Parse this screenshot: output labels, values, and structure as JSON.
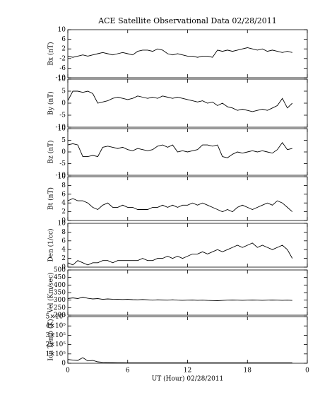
{
  "chart_data": [
    {
      "type": "line",
      "title": "ACE Satellite Observational Data   02/28/2011",
      "ylabel": "Bx (nT)",
      "color": "#000000",
      "x": [
        0,
        0.5,
        1,
        1.5,
        2,
        2.5,
        3,
        3.5,
        4,
        4.5,
        5,
        5.5,
        6,
        6.5,
        7,
        7.5,
        8,
        8.5,
        9,
        9.5,
        10,
        10.5,
        11,
        11.5,
        12,
        12.5,
        13,
        13.5,
        14,
        14.5,
        15,
        15.5,
        16,
        16.5,
        17,
        17.5,
        18,
        18.5,
        19,
        19.5,
        20,
        20.5,
        21,
        21.5,
        22,
        22.5
      ],
      "values": [
        -1,
        -1.5,
        -1,
        -0.5,
        -1,
        -0.5,
        0,
        0.5,
        0,
        -0.5,
        0,
        0.5,
        0,
        -0.5,
        1,
        1.5,
        1.5,
        1,
        2,
        1.5,
        0,
        -0.5,
        0,
        -0.5,
        -1,
        -1,
        -1.5,
        -1,
        -1,
        -1.5,
        1.5,
        1,
        1.5,
        1,
        1.5,
        2,
        2.5,
        2,
        1.5,
        2,
        1,
        1.5,
        1,
        0.5,
        1,
        0.5
      ],
      "xlim": [
        0,
        24
      ],
      "xticks": [
        0,
        6,
        12,
        18,
        {
          "value": 24,
          "label": "0"
        }
      ],
      "ylim": [
        -10,
        10
      ],
      "yticks": [
        -10,
        -6,
        -2,
        2,
        6,
        10
      ]
    },
    {
      "type": "line",
      "ylabel": "By (nT)",
      "color": "#000000",
      "x": [
        0,
        0.5,
        1,
        1.5,
        2,
        2.5,
        3,
        3.5,
        4,
        4.5,
        5,
        5.5,
        6,
        6.5,
        7,
        7.5,
        8,
        8.5,
        9,
        9.5,
        10,
        10.5,
        11,
        11.5,
        12,
        12.5,
        13,
        13.5,
        14,
        14.5,
        15,
        15.5,
        16,
        16.5,
        17,
        17.5,
        18,
        18.5,
        19,
        19.5,
        20,
        20.5,
        21,
        21.5,
        22,
        22.5
      ],
      "values": [
        1,
        5,
        5,
        4.5,
        5,
        4,
        0,
        0.5,
        1,
        2,
        2.5,
        2,
        1.5,
        2,
        3,
        2.5,
        2,
        2.5,
        2,
        3,
        2.5,
        2,
        2.5,
        2,
        1.5,
        1,
        0.5,
        1,
        0,
        0.5,
        -1,
        0,
        -1.5,
        -2,
        -3,
        -2.5,
        -3,
        -3.5,
        -3,
        -2.5,
        -3,
        -2,
        -1,
        2,
        -2,
        0
      ],
      "xlim": [
        0,
        24
      ],
      "xticks": [
        0,
        6,
        12,
        18,
        {
          "value": 24,
          "label": "0"
        }
      ],
      "ylim": [
        -10,
        10
      ],
      "yticks": [
        -10,
        -5,
        0,
        5,
        10
      ]
    },
    {
      "type": "line",
      "ylabel": "Bz (nT)",
      "color": "#000000",
      "x": [
        0,
        0.5,
        1,
        1.5,
        2,
        2.5,
        3,
        3.5,
        4,
        4.5,
        5,
        5.5,
        6,
        6.5,
        7,
        7.5,
        8,
        8.5,
        9,
        9.5,
        10,
        10.5,
        11,
        11.5,
        12,
        12.5,
        13,
        13.5,
        14,
        14.5,
        15,
        15.5,
        16,
        16.5,
        17,
        17.5,
        18,
        18.5,
        19,
        19.5,
        20,
        20.5,
        21,
        21.5,
        22,
        22.5
      ],
      "values": [
        3,
        3.5,
        3,
        -2,
        -2,
        -1.5,
        -2,
        2,
        2.5,
        2,
        1.5,
        2,
        1,
        0.5,
        1.5,
        1,
        0.5,
        1,
        2.5,
        3,
        2,
        3,
        0,
        0.5,
        0,
        0.5,
        1,
        3,
        3,
        2.5,
        3,
        -2,
        -2.5,
        -1,
        0,
        -0.5,
        0,
        0.5,
        0,
        0.5,
        0,
        -0.5,
        1,
        4,
        1,
        1.5
      ],
      "xlim": [
        0,
        24
      ],
      "xticks": [
        0,
        6,
        12,
        18,
        {
          "value": 24,
          "label": "0"
        }
      ],
      "ylim": [
        -10,
        10
      ],
      "yticks": [
        -10,
        -5,
        0,
        5,
        10
      ]
    },
    {
      "type": "line",
      "ylabel": "Bt (nT)",
      "color": "#000000",
      "x": [
        0,
        0.5,
        1,
        1.5,
        2,
        2.5,
        3,
        3.5,
        4,
        4.5,
        5,
        5.5,
        6,
        6.5,
        7,
        7.5,
        8,
        8.5,
        9,
        9.5,
        10,
        10.5,
        11,
        11.5,
        12,
        12.5,
        13,
        13.5,
        14,
        14.5,
        15,
        15.5,
        16,
        16.5,
        17,
        17.5,
        18,
        18.5,
        19,
        19.5,
        20,
        20.5,
        21,
        21.5,
        22,
        22.5
      ],
      "values": [
        4.5,
        5,
        4.5,
        4.5,
        4,
        3,
        2.5,
        3.5,
        4,
        3,
        3,
        3.5,
        3,
        3,
        2.5,
        2.5,
        2.5,
        3,
        3,
        3.5,
        3,
        3.5,
        3,
        3.5,
        3.5,
        4,
        3.5,
        4,
        3.5,
        3,
        2.5,
        2,
        2.5,
        2,
        3,
        3.5,
        3,
        2.5,
        3,
        3.5,
        4,
        3.5,
        4.5,
        4,
        3,
        2
      ],
      "xlim": [
        0,
        24
      ],
      "xticks": [
        0,
        6,
        12,
        18,
        {
          "value": 24,
          "label": "0"
        }
      ],
      "ylim": [
        0,
        10
      ],
      "yticks": [
        0,
        2,
        4,
        6,
        8,
        10
      ]
    },
    {
      "type": "line",
      "ylabel": "Den (1/cc)",
      "color": "#000000",
      "x": [
        0,
        0.5,
        1,
        1.5,
        2,
        2.5,
        3,
        3.5,
        4,
        4.5,
        5,
        5.5,
        6,
        6.5,
        7,
        7.5,
        8,
        8.5,
        9,
        9.5,
        10,
        10.5,
        11,
        11.5,
        12,
        12.5,
        13,
        13.5,
        14,
        14.5,
        15,
        15.5,
        16,
        16.5,
        17,
        17.5,
        18,
        18.5,
        19,
        19.5,
        20,
        20.5,
        21,
        21.5,
        22,
        22.5
      ],
      "values": [
        1,
        0.5,
        1.5,
        1,
        0.5,
        1,
        1,
        1.5,
        1.5,
        1,
        1.5,
        1.5,
        1.5,
        1.5,
        1.5,
        2,
        1.5,
        1.5,
        2,
        2,
        2.5,
        2,
        2.5,
        2,
        2.5,
        3,
        3,
        3.5,
        3,
        3.5,
        4,
        3.5,
        4,
        4.5,
        5,
        4.5,
        5,
        5.5,
        4.5,
        5,
        4.5,
        4,
        4.5,
        5,
        4,
        2
      ],
      "xlim": [
        0,
        24
      ],
      "xticks": [
        0,
        6,
        12,
        18,
        {
          "value": 24,
          "label": "0"
        }
      ],
      "ylim": [
        0,
        10
      ],
      "yticks": [
        0,
        2,
        4,
        6,
        8,
        10
      ]
    },
    {
      "type": "line",
      "ylabel": "Vel (Km/sec)",
      "color": "#000000",
      "x": [
        0,
        0.5,
        1,
        1.5,
        2,
        2.5,
        3,
        3.5,
        4,
        4.5,
        5,
        5.5,
        6,
        6.5,
        7,
        7.5,
        8,
        8.5,
        9,
        9.5,
        10,
        10.5,
        11,
        11.5,
        12,
        12.5,
        13,
        13.5,
        14,
        14.5,
        15,
        15.5,
        16,
        16.5,
        17,
        17.5,
        18,
        18.5,
        19,
        19.5,
        20,
        20.5,
        21,
        21.5,
        22,
        22.5
      ],
      "values": [
        310,
        315,
        310,
        320,
        312,
        308,
        310,
        305,
        308,
        306,
        305,
        304,
        305,
        303,
        302,
        304,
        302,
        300,
        302,
        301,
        300,
        302,
        300,
        299,
        300,
        301,
        299,
        300,
        298,
        297,
        296,
        298,
        300,
        301,
        300,
        299,
        300,
        301,
        300,
        299,
        300,
        301,
        300,
        299,
        300,
        298
      ],
      "xlim": [
        0,
        24
      ],
      "xticks": [
        0,
        6,
        12,
        18,
        {
          "value": 24,
          "label": "0"
        }
      ],
      "ylim": [
        200,
        500
      ],
      "yticks": [
        200,
        250,
        300,
        350,
        400,
        450,
        500
      ]
    },
    {
      "type": "line",
      "ylabel": "Ion Temp (K)",
      "xlabel": "UT (Hour)   02/28/2011",
      "color": "#000000",
      "x": [
        0,
        0.5,
        1,
        1.5,
        2,
        2.5,
        3,
        3.5,
        4,
        4.5,
        5,
        5.5,
        6,
        6.5,
        7,
        7.5,
        8,
        8.5,
        9,
        9.5,
        10,
        10.5,
        11,
        11.5,
        12,
        12.5,
        13,
        13.5,
        14,
        14.5,
        15,
        15.5,
        16,
        16.5,
        17,
        17.5,
        18,
        18.5,
        19,
        19.5,
        20,
        20.5,
        21,
        21.5,
        22,
        22.5
      ],
      "values": [
        40000,
        35000,
        30000,
        60000,
        25000,
        30000,
        15000,
        10000,
        8000,
        7000,
        6000,
        6000,
        5000,
        5000,
        5000,
        5000,
        5000,
        5000,
        5000,
        5000,
        5000,
        5000,
        5000,
        5000,
        5000,
        5000,
        5000,
        5000,
        5000,
        5000,
        5000,
        5000,
        5000,
        5000,
        5000,
        5000,
        5000,
        5000,
        5000,
        5000,
        5000,
        5000,
        5000,
        5000,
        5000,
        5000
      ],
      "xlim": [
        0,
        24
      ],
      "xticks": [
        0,
        6,
        12,
        18,
        {
          "value": 24,
          "label": "0"
        }
      ],
      "ylim": [
        0,
        500000
      ],
      "yticks": [
        0,
        {
          "value": 100000,
          "label": "1×10⁵"
        },
        {
          "value": 200000,
          "label": "2×10⁵"
        },
        {
          "value": 300000,
          "label": "3×10⁵"
        },
        {
          "value": 400000,
          "label": "4×10⁵"
        },
        {
          "value": 500000,
          "label": "5×10⁵"
        }
      ]
    }
  ]
}
